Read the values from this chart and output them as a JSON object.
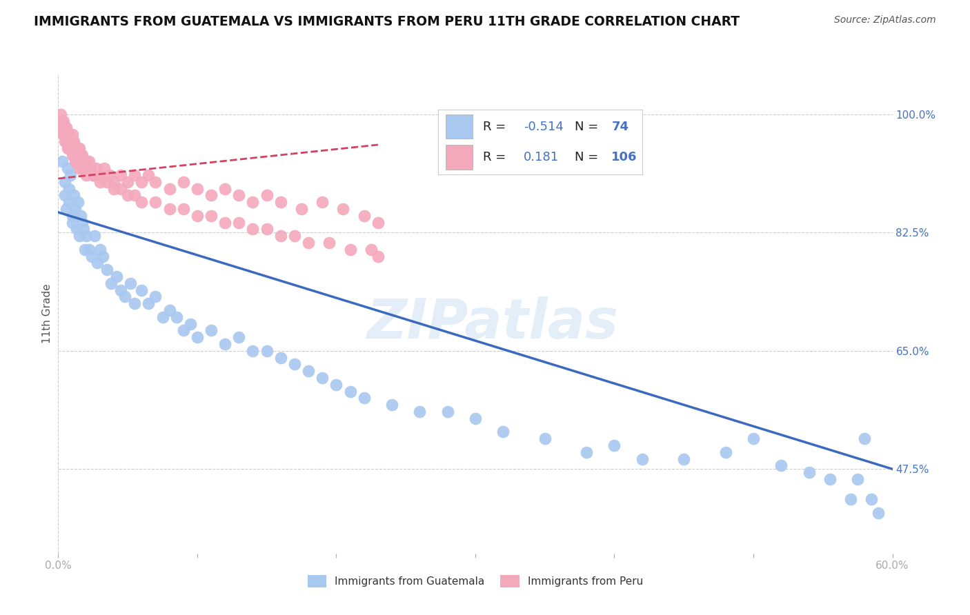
{
  "title": "IMMIGRANTS FROM GUATEMALA VS IMMIGRANTS FROM PERU 11TH GRADE CORRELATION CHART",
  "source": "Source: ZipAtlas.com",
  "ylabel": "11th Grade",
  "xlim": [
    0.0,
    0.6
  ],
  "ylim": [
    0.35,
    1.06
  ],
  "yticks": [
    1.0,
    0.825,
    0.65,
    0.475
  ],
  "ytick_labels": [
    "100.0%",
    "82.5%",
    "65.0%",
    "47.5%"
  ],
  "xtick_positions": [
    0.0,
    0.1,
    0.2,
    0.3,
    0.4,
    0.5,
    0.6
  ],
  "xtick_labels": [
    "0.0%",
    "",
    "",
    "",
    "",
    "",
    "60.0%"
  ],
  "label1": "Immigrants from Guatemala",
  "label2": "Immigrants from Peru",
  "color1": "#a8c8f0",
  "color2": "#f4a8bc",
  "line1_color": "#3a6abf",
  "line2_color": "#d44060",
  "line1_x0": 0.0,
  "line1_y0": 0.855,
  "line1_x1": 0.6,
  "line1_y1": 0.475,
  "line2_x0": 0.0,
  "line2_y0": 0.905,
  "line2_x1": 0.23,
  "line2_y1": 0.955,
  "watermark": "ZIPatlas",
  "title_color": "#111111",
  "title_fontsize": 13.5,
  "source_color": "#555555",
  "grid_color": "#cccccc",
  "right_tick_color": "#4472c4",
  "scatter1_x": [
    0.003,
    0.005,
    0.005,
    0.006,
    0.007,
    0.008,
    0.008,
    0.009,
    0.01,
    0.01,
    0.011,
    0.012,
    0.013,
    0.014,
    0.015,
    0.016,
    0.017,
    0.018,
    0.019,
    0.02,
    0.022,
    0.024,
    0.026,
    0.028,
    0.03,
    0.032,
    0.035,
    0.038,
    0.042,
    0.045,
    0.048,
    0.052,
    0.055,
    0.06,
    0.065,
    0.07,
    0.075,
    0.08,
    0.085,
    0.09,
    0.095,
    0.1,
    0.11,
    0.12,
    0.13,
    0.14,
    0.15,
    0.16,
    0.17,
    0.18,
    0.19,
    0.2,
    0.21,
    0.22,
    0.24,
    0.26,
    0.28,
    0.3,
    0.32,
    0.35,
    0.38,
    0.4,
    0.42,
    0.45,
    0.48,
    0.5,
    0.52,
    0.54,
    0.555,
    0.57,
    0.575,
    0.58,
    0.585,
    0.59
  ],
  "scatter1_y": [
    0.93,
    0.9,
    0.88,
    0.86,
    0.92,
    0.89,
    0.87,
    0.91,
    0.85,
    0.84,
    0.88,
    0.86,
    0.83,
    0.87,
    0.82,
    0.85,
    0.84,
    0.83,
    0.8,
    0.82,
    0.8,
    0.79,
    0.82,
    0.78,
    0.8,
    0.79,
    0.77,
    0.75,
    0.76,
    0.74,
    0.73,
    0.75,
    0.72,
    0.74,
    0.72,
    0.73,
    0.7,
    0.71,
    0.7,
    0.68,
    0.69,
    0.67,
    0.68,
    0.66,
    0.67,
    0.65,
    0.65,
    0.64,
    0.63,
    0.62,
    0.61,
    0.6,
    0.59,
    0.58,
    0.57,
    0.56,
    0.56,
    0.55,
    0.53,
    0.52,
    0.5,
    0.51,
    0.49,
    0.49,
    0.5,
    0.52,
    0.48,
    0.47,
    0.46,
    0.43,
    0.46,
    0.52,
    0.43,
    0.41
  ],
  "scatter2_x": [
    0.002,
    0.003,
    0.003,
    0.004,
    0.004,
    0.005,
    0.005,
    0.005,
    0.006,
    0.006,
    0.006,
    0.007,
    0.007,
    0.007,
    0.008,
    0.008,
    0.009,
    0.009,
    0.01,
    0.01,
    0.01,
    0.011,
    0.011,
    0.012,
    0.012,
    0.013,
    0.013,
    0.014,
    0.014,
    0.015,
    0.015,
    0.016,
    0.016,
    0.017,
    0.018,
    0.019,
    0.02,
    0.021,
    0.022,
    0.023,
    0.025,
    0.027,
    0.03,
    0.033,
    0.037,
    0.04,
    0.045,
    0.05,
    0.055,
    0.06,
    0.065,
    0.07,
    0.08,
    0.09,
    0.1,
    0.11,
    0.12,
    0.13,
    0.14,
    0.15,
    0.16,
    0.175,
    0.19,
    0.205,
    0.22,
    0.23,
    0.003,
    0.004,
    0.005,
    0.006,
    0.007,
    0.008,
    0.009,
    0.01,
    0.011,
    0.012,
    0.013,
    0.015,
    0.017,
    0.02,
    0.025,
    0.03,
    0.035,
    0.04,
    0.045,
    0.05,
    0.055,
    0.06,
    0.07,
    0.08,
    0.09,
    0.1,
    0.11,
    0.12,
    0.13,
    0.14,
    0.15,
    0.16,
    0.17,
    0.18,
    0.195,
    0.21,
    0.225,
    0.23
  ],
  "scatter2_y": [
    1.0,
    0.99,
    0.98,
    0.99,
    0.97,
    0.98,
    0.97,
    0.96,
    0.98,
    0.97,
    0.96,
    0.97,
    0.96,
    0.95,
    0.97,
    0.96,
    0.96,
    0.95,
    0.97,
    0.96,
    0.95,
    0.96,
    0.95,
    0.95,
    0.94,
    0.95,
    0.94,
    0.95,
    0.94,
    0.95,
    0.93,
    0.94,
    0.93,
    0.94,
    0.93,
    0.93,
    0.93,
    0.92,
    0.93,
    0.92,
    0.91,
    0.92,
    0.91,
    0.92,
    0.91,
    0.9,
    0.91,
    0.9,
    0.91,
    0.9,
    0.91,
    0.9,
    0.89,
    0.9,
    0.89,
    0.88,
    0.89,
    0.88,
    0.87,
    0.88,
    0.87,
    0.86,
    0.87,
    0.86,
    0.85,
    0.84,
    0.99,
    0.98,
    0.97,
    0.97,
    0.96,
    0.95,
    0.95,
    0.94,
    0.94,
    0.93,
    0.93,
    0.92,
    0.92,
    0.91,
    0.91,
    0.9,
    0.9,
    0.89,
    0.89,
    0.88,
    0.88,
    0.87,
    0.87,
    0.86,
    0.86,
    0.85,
    0.85,
    0.84,
    0.84,
    0.83,
    0.83,
    0.82,
    0.82,
    0.81,
    0.81,
    0.8,
    0.8,
    0.79
  ]
}
